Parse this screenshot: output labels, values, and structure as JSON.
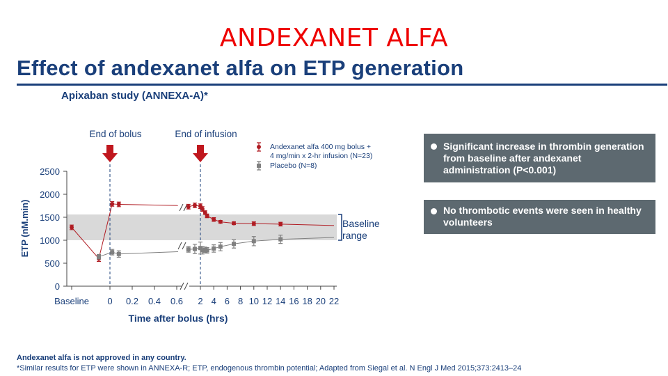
{
  "banner": "ANDEXANET ALFA",
  "title": "Effect of andexanet alfa on ETP generation",
  "subtitle": "Apixaban study (ANNEXA-A)*",
  "colors": {
    "title_blue": "#1a3f7a",
    "andexanet_red": "#b01c23",
    "placebo_gray": "#808080",
    "panel_bg": "#5d6970",
    "baseline_band": "#d9d9d9",
    "banner_red": "#ee0000"
  },
  "panels": [
    {
      "bullet": "bullet-icon",
      "text": "Significant increase in thrombin generation from baseline after andexanet administration (P<0.001)"
    },
    {
      "bullet": "bullet-icon",
      "text": "No thrombotic events were seen in healthy volunteers"
    }
  ],
  "footer": {
    "note": "Andexanet alfa is not approved in any country.",
    "source": "*Similar results for ETP were shown in ANNEXA-R; ETP, endogenous thrombin potential; Adapted from Siegal et al. N Engl J Med 2015;373:2413–24"
  },
  "chart_data": {
    "type": "line",
    "ylabel": "ETP (nM.min)",
    "xlabel": "Time after bolus (hrs)",
    "ylim": [
      0,
      2500
    ],
    "yticks": [
      "0",
      "500",
      "1000",
      "1500",
      "2000",
      "2500"
    ],
    "xticks_left": [
      "Baseline",
      "0",
      "0.2",
      "0.4",
      "0.6"
    ],
    "xticks_right": [
      "2",
      "4",
      "6",
      "8",
      "10",
      "12",
      "14",
      "16",
      "18",
      "20",
      "22"
    ],
    "markers": [
      {
        "label": "End of bolus",
        "x": 0,
        "icon": "down-arrow-icon"
      },
      {
        "label": "End of infusion",
        "x": 2,
        "icon": "down-arrow-icon"
      }
    ],
    "baseline_range": {
      "low": 1000,
      "high": 1560,
      "label_line1": "Baseline",
      "label_line2": "range"
    },
    "series": [
      {
        "name": "Andexanet alfa 400 mg bolus + 4 mg/min x 2-hr infusion (N=23)",
        "marker": "circle",
        "color": "#b01c23",
        "points": [
          {
            "x": "Baseline",
            "y": 1280,
            "err": 50
          },
          {
            "x": -0.1,
            "y": 600,
            "err": 60
          },
          {
            "x": 0.02,
            "y": 1790,
            "err": 50
          },
          {
            "x": 0.08,
            "y": 1780,
            "err": 50
          },
          {
            "x": 1.25,
            "y": 1730,
            "err": 50
          },
          {
            "x": 1.65,
            "y": 1760,
            "err": 50
          },
          {
            "x": 2.0,
            "y": 1740,
            "err": 50
          },
          {
            "x": 2.3,
            "y": 1680,
            "err": 50
          },
          {
            "x": 2.7,
            "y": 1600,
            "err": 40
          },
          {
            "x": 3.0,
            "y": 1530,
            "err": 40
          },
          {
            "x": 4.0,
            "y": 1450,
            "err": 40
          },
          {
            "x": 5.0,
            "y": 1400,
            "err": 30
          },
          {
            "x": 7.0,
            "y": 1370,
            "err": 30
          },
          {
            "x": 10.0,
            "y": 1360,
            "err": 40
          },
          {
            "x": 14.0,
            "y": 1350,
            "err": 40
          }
        ],
        "trend_end": {
          "x": 22,
          "y": 1320
        }
      },
      {
        "name": "Placebo (N=8)",
        "marker": "square",
        "color": "#808080",
        "points": [
          {
            "x": -0.1,
            "y": 640,
            "err": 50
          },
          {
            "x": 0.02,
            "y": 740,
            "err": 60
          },
          {
            "x": 0.08,
            "y": 700,
            "err": 70
          },
          {
            "x": 1.25,
            "y": 800,
            "err": 60
          },
          {
            "x": 1.65,
            "y": 810,
            "err": 100
          },
          {
            "x": 2.0,
            "y": 830,
            "err": 130
          },
          {
            "x": 2.3,
            "y": 780,
            "err": 80
          },
          {
            "x": 2.7,
            "y": 790,
            "err": 60
          },
          {
            "x": 3.0,
            "y": 780,
            "err": 60
          },
          {
            "x": 4.0,
            "y": 820,
            "err": 80
          },
          {
            "x": 5.0,
            "y": 860,
            "err": 90
          },
          {
            "x": 7.0,
            "y": 920,
            "err": 90
          },
          {
            "x": 10.0,
            "y": 980,
            "err": 100
          },
          {
            "x": 14.0,
            "y": 1020,
            "err": 90
          }
        ],
        "trend_end": {
          "x": 22,
          "y": 1060
        }
      }
    ]
  }
}
